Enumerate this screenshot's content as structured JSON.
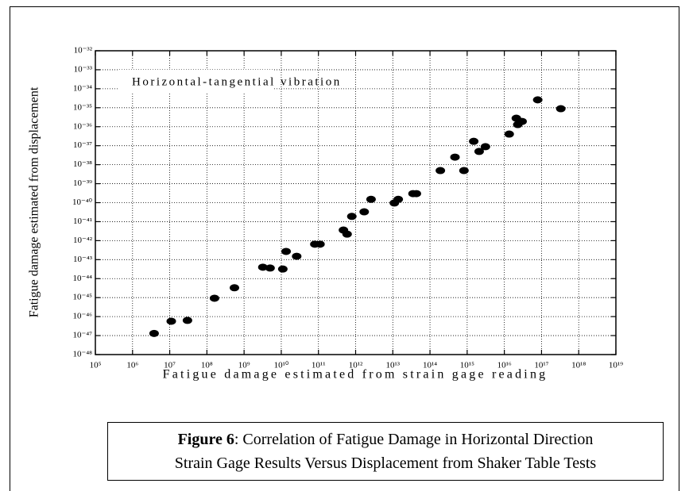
{
  "chart_data": {
    "type": "scatter",
    "annotation": "Horizontal-tangential vibration",
    "x_label": "Fatigue damage estimated from strain gage reading",
    "y_label": "Fatigue damage estimated from displacement",
    "log_x": true,
    "log_y": true,
    "grid": true,
    "color": "#000000",
    "xlim": [
      100000.0,
      1e+19
    ],
    "xticks": [
      {
        "value": 100000.0,
        "label": "10⁵"
      },
      {
        "value": 1000000.0,
        "label": "10⁶"
      },
      {
        "value": 10000000.0,
        "label": "10⁷"
      },
      {
        "value": 100000000.0,
        "label": "10⁸"
      },
      {
        "value": 1000000000.0,
        "label": "10⁹"
      },
      {
        "value": 10000000000.0,
        "label": "10¹⁰"
      },
      {
        "value": 100000000000.0,
        "label": "10¹¹"
      },
      {
        "value": 1000000000000.0,
        "label": "10¹²"
      },
      {
        "value": 10000000000000.0,
        "label": "10¹³"
      },
      {
        "value": 100000000000000.0,
        "label": "10¹⁴"
      },
      {
        "value": 1000000000000000.0,
        "label": "10¹⁵"
      },
      {
        "value": 1e+16,
        "label": "10¹⁶"
      },
      {
        "value": 1e+17,
        "label": "10¹⁷"
      },
      {
        "value": 1e+18,
        "label": "10¹⁸"
      },
      {
        "value": 1e+19,
        "label": "10¹⁹"
      }
    ],
    "ylim": [
      1e-48,
      1e-32
    ],
    "yticks": [
      {
        "value": 1e-32,
        "label": "10⁻³²"
      },
      {
        "value": 1e-33,
        "label": "10⁻³³"
      },
      {
        "value": 1e-34,
        "label": "10⁻³⁴"
      },
      {
        "value": 1e-35,
        "label": "10⁻³⁵"
      },
      {
        "value": 1e-36,
        "label": "10⁻³⁶"
      },
      {
        "value": 1e-37,
        "label": "10⁻³⁷"
      },
      {
        "value": 1e-38,
        "label": "10⁻³⁸"
      },
      {
        "value": 1e-39,
        "label": "10⁻³⁹"
      },
      {
        "value": 1e-40,
        "label": "10⁻⁴⁰"
      },
      {
        "value": 1e-41,
        "label": "10⁻⁴¹"
      },
      {
        "value": 1e-42,
        "label": "10⁻⁴²"
      },
      {
        "value": 1e-43,
        "label": "10⁻⁴³"
      },
      {
        "value": 1e-44,
        "label": "10⁻⁴⁴"
      },
      {
        "value": 1e-45,
        "label": "10⁻⁴⁵"
      },
      {
        "value": 1e-46,
        "label": "10⁻⁴⁶"
      },
      {
        "value": 1e-47,
        "label": "10⁻⁴⁷"
      },
      {
        "value": 1e-48,
        "label": "10⁻⁴⁸"
      }
    ],
    "x": [
      3800000.0,
      11000000.0,
      30000000.0,
      160000000.0,
      550000000.0,
      3200000000.0,
      5000000000.0,
      11000000000.0,
      13500000000.0,
      26000000000.0,
      80000000000.0,
      110000000000.0,
      470000000000.0,
      590000000000.0,
      790000000000.0,
      1700000000000.0,
      2600000000000.0,
      11000000000000.0,
      14000000000000.0,
      35000000000000.0,
      43000000000000.0,
      190000000000000.0,
      470000000000000.0,
      820000000000000.0,
      1500000000000000.0,
      2100000000000000.0,
      3100000000000000.0,
      1.35e+16,
      2.1e+16,
      2.3e+16,
      3e+16,
      7.9e+16,
      3.3e+17
    ],
    "values": [
      1.3e-47,
      5.7e-47,
      6.3e-47,
      9.3e-46,
      3.3e-45,
      4e-44,
      3.6e-44,
      3.2e-44,
      2.7e-43,
      1.5e-43,
      6.5e-43,
      6.5e-43,
      3.6e-42,
      2.2e-42,
      1.9e-41,
      3.3e-41,
      1.5e-40,
      9.6e-41,
      1.5e-40,
      3e-40,
      3e-40,
      4.9e-39,
      2.5e-38,
      4.9e-39,
      1.7e-37,
      5e-38,
      8.9e-38,
      4.1e-37,
      2.8e-36,
      1.3e-36,
      1.9e-36,
      2.6e-35,
      8.9e-36
    ]
  },
  "caption": {
    "label": "Figure 6",
    "line1": ": Correlation of Fatigue Damage in Horizontal Direction",
    "line2": "Strain Gage Results Versus Displacement from Shaker Table Tests"
  }
}
